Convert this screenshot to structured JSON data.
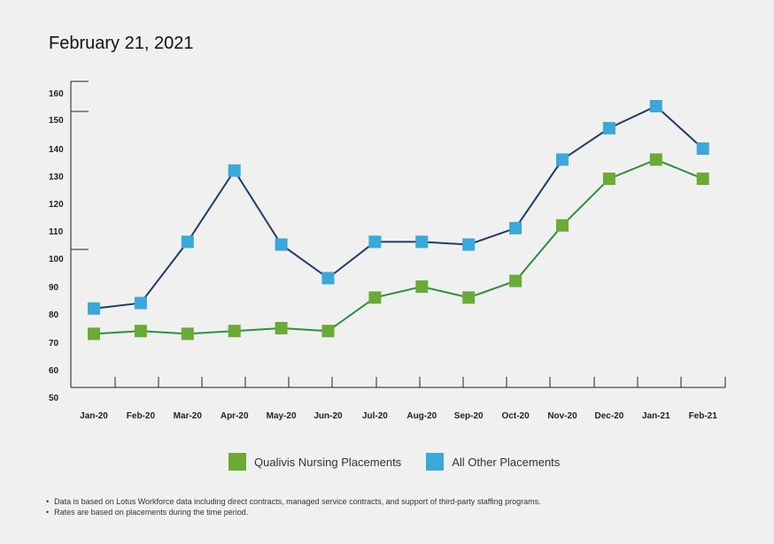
{
  "title": "February 21, 2021",
  "chart_data": {
    "type": "line",
    "categories": [
      "Jan-20",
      "Feb-20",
      "Mar-20",
      "Apr-20",
      "May-20",
      "Jun-20",
      "Jul-20",
      "Aug-20",
      "Sep-20",
      "Oct-20",
      "Nov-20",
      "Dec-20",
      "Jan-21",
      "Feb-21"
    ],
    "yticks": [
      "160",
      "150",
      "140",
      "130",
      "120",
      "110",
      "100",
      "90",
      "80",
      "70",
      "60",
      "50"
    ],
    "ylim": [
      50,
      160
    ],
    "series": [
      {
        "name": "Qualivis Nursing Placements",
        "color": "#6aaa35",
        "line_color": "#2f8f3a",
        "values": [
          73,
          74,
          73,
          74,
          75,
          74,
          86,
          90,
          86,
          92,
          112,
          129,
          136,
          129
        ]
      },
      {
        "name": "All Other Placements",
        "color": "#3aa8d8",
        "line_color": "#1f3d66",
        "values": [
          82,
          84,
          106,
          132,
          105,
          93,
          106,
          106,
          105,
          111,
          136,
          147,
          155,
          140
        ]
      }
    ],
    "grid": false,
    "legend_position": "bottom"
  },
  "notes": [
    "Data is based on Lotus Workforce data including direct contracts, managed service contracts, and support of third-party staffing programs.",
    "Rates are based on placements during the time period."
  ]
}
